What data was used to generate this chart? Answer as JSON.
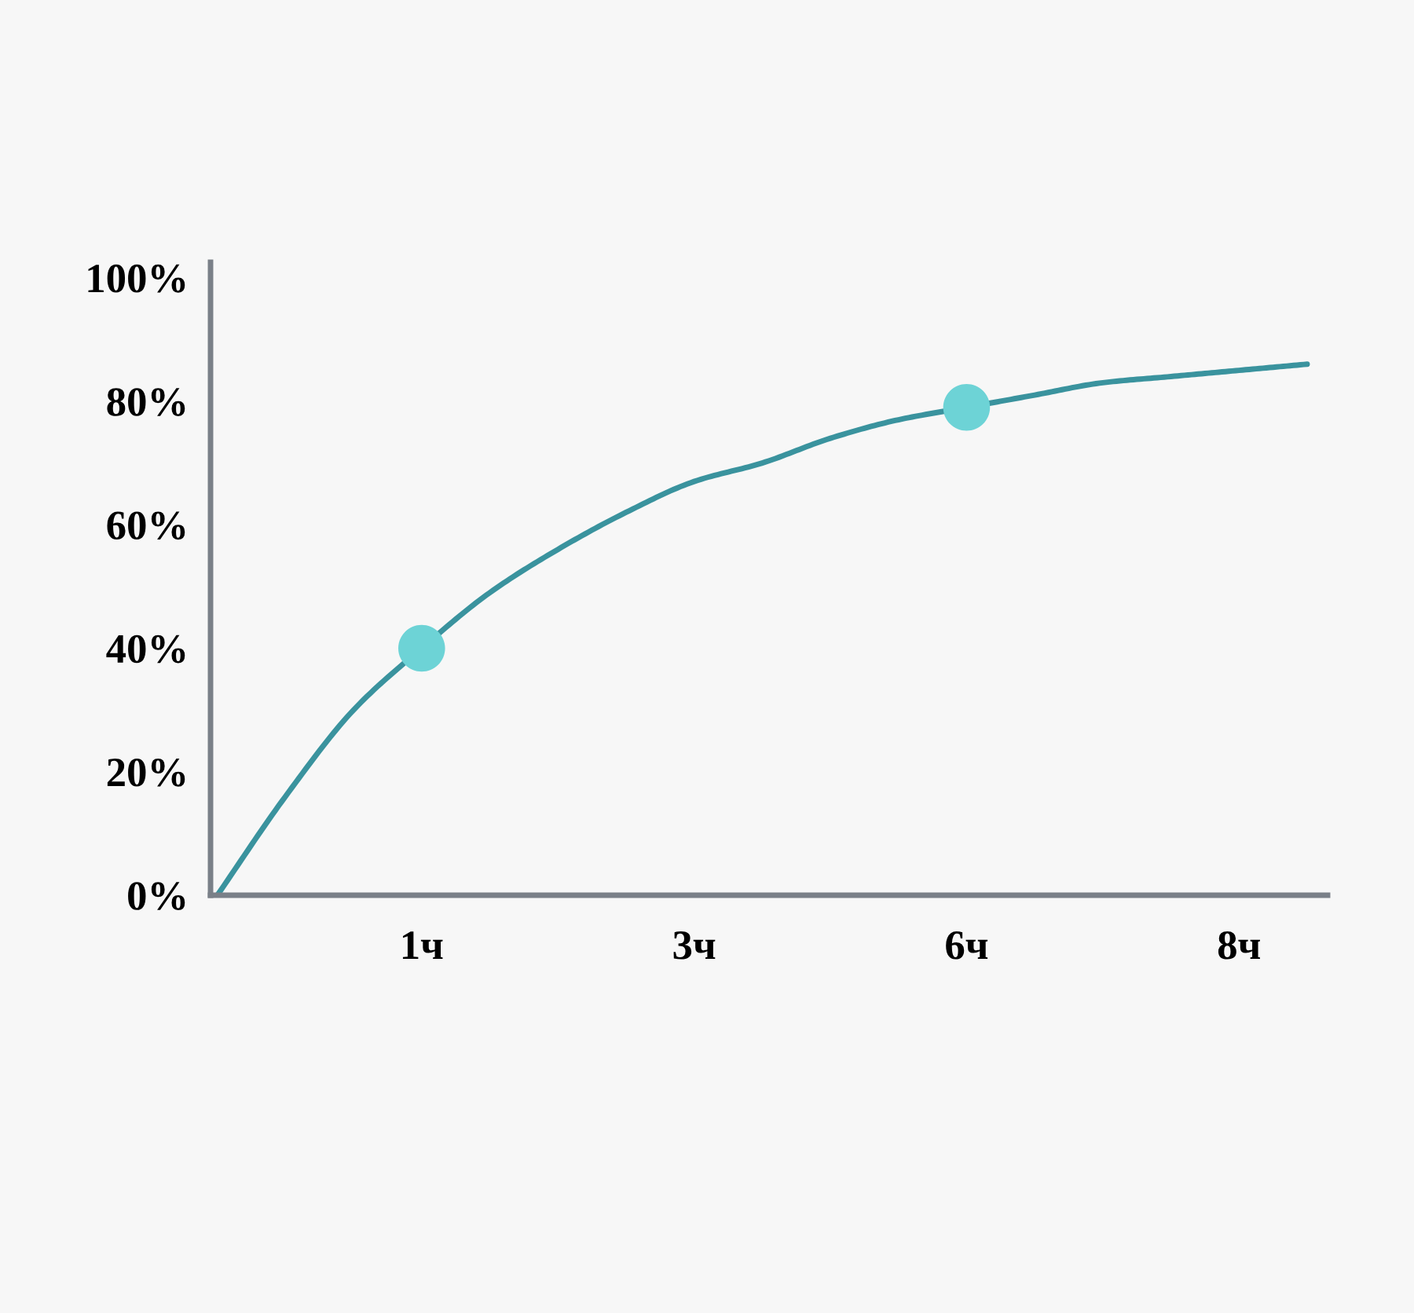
{
  "chart_data": {
    "type": "line",
    "categories": [
      null,
      null,
      null,
      "1ч",
      null,
      null,
      null,
      "3ч",
      null,
      null,
      null,
      "6ч",
      null,
      null,
      null,
      "8ч",
      null
    ],
    "ylim": [
      0,
      102.5
    ],
    "yticks": [
      {
        "value": 0,
        "label": "0%"
      },
      {
        "value": 20,
        "label": "20%"
      },
      {
        "value": 40,
        "label": "40%"
      },
      {
        "value": 60,
        "label": "60%"
      },
      {
        "value": 80,
        "label": "80%"
      },
      {
        "value": 100,
        "label": "100%"
      }
    ],
    "series": [
      {
        "color": "#3a939e",
        "values": [
          0,
          16,
          30,
          40,
          49,
          56,
          62,
          67,
          70,
          74,
          77,
          79,
          81,
          83,
          84,
          85,
          86
        ]
      },
      {
        "type": "scatter",
        "color": "#6dd3d6",
        "marker": "circle",
        "values": [
          null,
          null,
          null,
          40,
          null,
          null,
          null,
          null,
          null,
          null,
          null,
          79,
          null,
          null,
          null,
          null,
          null
        ]
      }
    ]
  }
}
